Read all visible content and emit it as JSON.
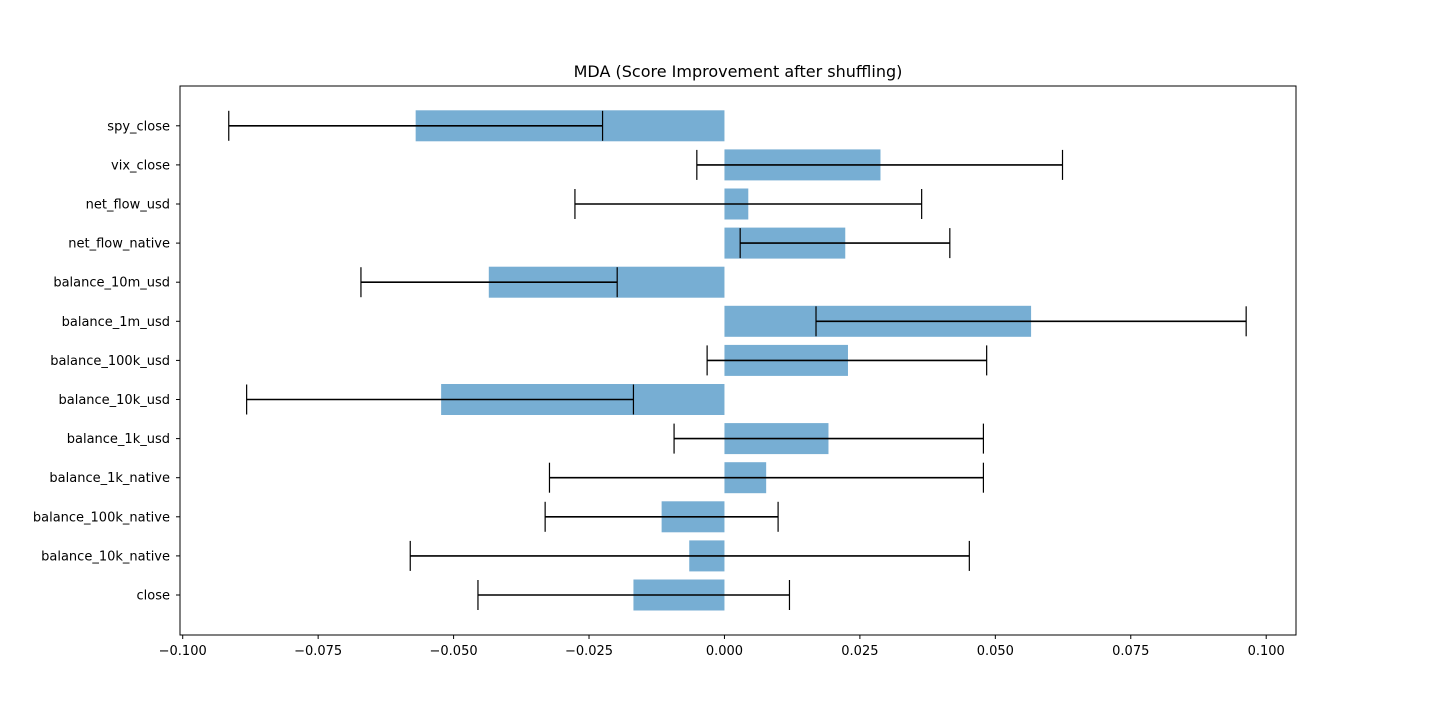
{
  "chart_data": {
    "type": "bar",
    "orientation": "horizontal",
    "title": "MDA (Score Improvement after shuffling)",
    "xlabel": "",
    "ylabel": "",
    "xlim": [
      -0.1005,
      0.1055
    ],
    "xticks": [
      -0.1,
      -0.075,
      -0.05,
      -0.025,
      0.0,
      0.025,
      0.05,
      0.075,
      0.1
    ],
    "xtick_labels": [
      "−0.100",
      "−0.075",
      "−0.050",
      "−0.025",
      "0.000",
      "0.025",
      "0.050",
      "0.075",
      "0.100"
    ],
    "categories": [
      "close",
      "balance_10k_native",
      "balance_100k_native",
      "balance_1k_native",
      "balance_1k_usd",
      "balance_10k_usd",
      "balance_100k_usd",
      "balance_1m_usd",
      "balance_10m_usd",
      "net_flow_native",
      "net_flow_usd",
      "vix_close",
      "spy_close"
    ],
    "values": [
      -0.0168,
      -0.0065,
      -0.0116,
      0.0077,
      0.0192,
      -0.0523,
      0.0228,
      0.0566,
      -0.0435,
      0.0223,
      0.0044,
      0.0288,
      -0.057
    ],
    "err_low": [
      -0.0455,
      -0.058,
      -0.0331,
      -0.0323,
      -0.0093,
      -0.0882,
      -0.0032,
      0.0169,
      -0.0671,
      0.0029,
      -0.0276,
      -0.0051,
      -0.0915
    ],
    "err_high": [
      0.012,
      0.0452,
      0.0099,
      0.0478,
      0.0478,
      -0.0168,
      0.0484,
      0.0963,
      -0.0198,
      0.0416,
      0.0364,
      0.0624,
      -0.0225
    ],
    "bar_color": "#77aed3",
    "error_color": "#000000",
    "grid": false,
    "legend": "none"
  }
}
